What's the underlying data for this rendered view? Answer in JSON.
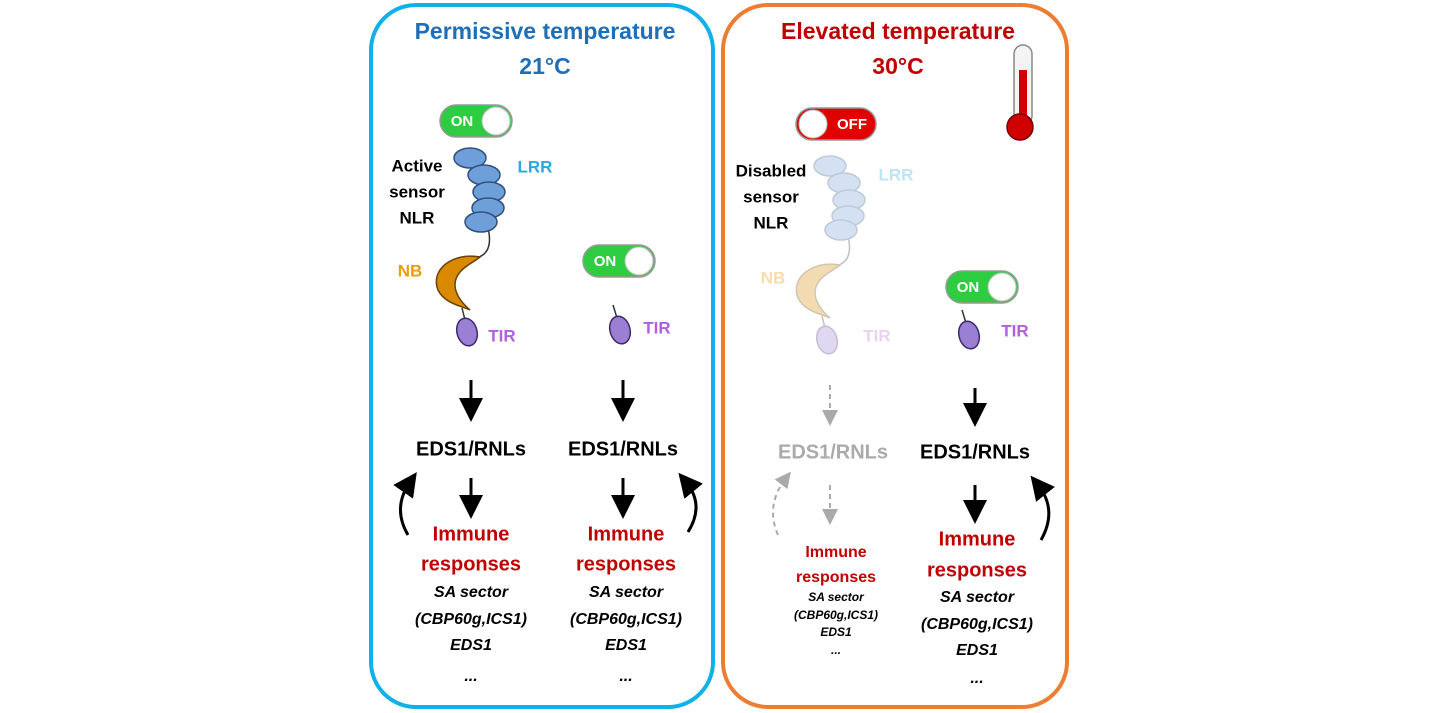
{
  "panels": [
    {
      "title": "Permissive temperature",
      "temperature": "21°C",
      "sensor": {
        "switch": "ON",
        "label": [
          "Active",
          "sensor",
          "NLR"
        ],
        "lrr": "LRR",
        "nb": "NB",
        "tir": "TIR"
      },
      "tir_domain": {
        "switch": "ON",
        "tir": "TIR"
      },
      "columns": [
        {
          "node": "EDS1/RNLs",
          "response": [
            "Immune",
            "responses"
          ],
          "details": [
            "SA sector",
            "(CBP60g,ICS1)",
            "EDS1",
            "..."
          ]
        },
        {
          "node": "EDS1/RNLs",
          "response": [
            "Immune",
            "responses"
          ],
          "details": [
            "SA sector",
            "(CBP60g,ICS1)",
            "EDS1",
            "..."
          ]
        }
      ]
    },
    {
      "title": "Elevated temperature",
      "temperature": "30°C",
      "sensor": {
        "switch": "OFF",
        "label": [
          "Disabled",
          "sensor",
          "NLR"
        ],
        "lrr": "LRR",
        "nb": "NB",
        "tir": "TIR"
      },
      "tir_domain": {
        "switch": "ON",
        "tir": "TIR"
      },
      "columns": [
        {
          "node": "EDS1/RNLs",
          "response": [
            "Immune",
            "responses"
          ],
          "details": [
            "SA sector",
            "(CBP60g,ICS1)",
            "EDS1",
            "..."
          ]
        },
        {
          "node": "EDS1/RNLs",
          "response": [
            "Immune",
            "responses"
          ],
          "details": [
            "SA sector",
            "(CBP60g,ICS1)",
            "EDS1",
            "..."
          ]
        }
      ]
    }
  ]
}
